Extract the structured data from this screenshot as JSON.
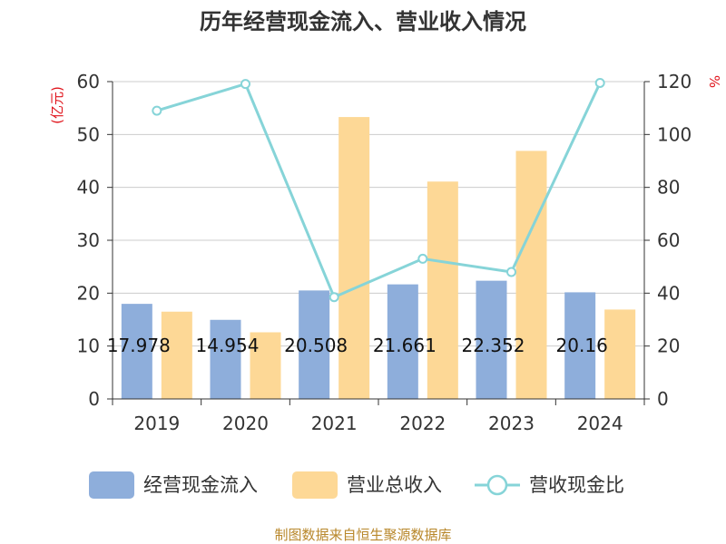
{
  "chart_data": {
    "type": "bar+line",
    "title": "历年经营现金流入、营业收入情况",
    "categories": [
      "2019",
      "2020",
      "2021",
      "2022",
      "2023",
      "2024"
    ],
    "series": [
      {
        "name": "经营现金流入",
        "type": "bar",
        "axis": "left",
        "color": "#8eaedb",
        "values": [
          17.978,
          14.954,
          20.508,
          21.661,
          22.352,
          20.16
        ],
        "labels": [
          "17.978",
          "14.954",
          "20.508",
          "21.661",
          "22.352",
          "20.16"
        ]
      },
      {
        "name": "营业总收入",
        "type": "bar",
        "axis": "left",
        "color": "#fdd896",
        "values": [
          16.5,
          12.6,
          53.3,
          41.1,
          46.9,
          16.9
        ]
      },
      {
        "name": "营收现金比",
        "type": "line",
        "axis": "right",
        "color": "#86d4d8",
        "values": [
          109,
          119.1,
          38.5,
          53,
          48,
          119.5
        ]
      }
    ],
    "left_axis": {
      "label": "(亿元)",
      "ylim": [
        0,
        60
      ],
      "ticks": [
        0,
        10,
        20,
        30,
        40,
        50,
        60
      ]
    },
    "right_axis": {
      "label": "%",
      "ylim": [
        0,
        120
      ],
      "ticks": [
        0,
        20,
        40,
        60,
        80,
        100,
        120
      ]
    },
    "legend_position": "bottom",
    "grid": true
  },
  "source": "制图数据来自恒生聚源数据库"
}
